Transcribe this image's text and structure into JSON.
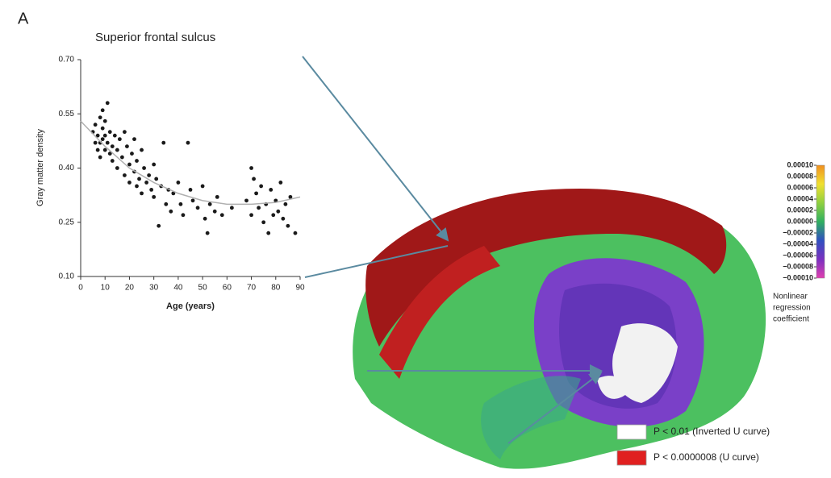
{
  "panel_label": "A",
  "chart_data": {
    "type": "scatter",
    "title": "Superior frontal sulcus",
    "xlabel": "Age (years)",
    "ylabel": "Gray matter density",
    "xlim": [
      0,
      90
    ],
    "ylim": [
      0.1,
      0.7
    ],
    "xticks": [
      0,
      10,
      20,
      30,
      40,
      50,
      60,
      70,
      80,
      90
    ],
    "yticks": [
      {
        "value": 0.1,
        "label": "0.10"
      },
      0.25,
      {
        "value": 0.4,
        "label": "0.40"
      },
      0.55,
      {
        "value": 0.7,
        "label": "0.70"
      }
    ],
    "series": [
      {
        "type": "scatter",
        "color": "#1a1a1a",
        "x": [
          5,
          6,
          6,
          7,
          7,
          8,
          8,
          8,
          9,
          9,
          9,
          10,
          10,
          10,
          11,
          11,
          12,
          12,
          13,
          13,
          14,
          15,
          15,
          16,
          17,
          18,
          18,
          19,
          20,
          20,
          21,
          22,
          22,
          23,
          23,
          24,
          25,
          25,
          26,
          27,
          28,
          29,
          30,
          30,
          31,
          32,
          33,
          34,
          35,
          36,
          37,
          38,
          40,
          41,
          42,
          44,
          45,
          46,
          48,
          50,
          51,
          52,
          53,
          55,
          56,
          58,
          62,
          68,
          70,
          70,
          71,
          72,
          73,
          74,
          75,
          76,
          77,
          78,
          79,
          80,
          81,
          82,
          83,
          84,
          85,
          86,
          88
        ],
        "values": [
          0.5,
          0.47,
          0.52,
          0.45,
          0.49,
          0.54,
          0.47,
          0.43,
          0.51,
          0.48,
          0.56,
          0.45,
          0.53,
          0.49,
          0.47,
          0.58,
          0.5,
          0.44,
          0.46,
          0.42,
          0.49,
          0.45,
          0.4,
          0.48,
          0.43,
          0.5,
          0.38,
          0.46,
          0.41,
          0.36,
          0.44,
          0.39,
          0.48,
          0.35,
          0.42,
          0.37,
          0.45,
          0.33,
          0.4,
          0.36,
          0.38,
          0.34,
          0.41,
          0.32,
          0.37,
          0.24,
          0.35,
          0.47,
          0.3,
          0.34,
          0.28,
          0.33,
          0.36,
          0.3,
          0.27,
          0.47,
          0.34,
          0.31,
          0.29,
          0.35,
          0.26,
          0.22,
          0.3,
          0.28,
          0.32,
          0.27,
          0.29,
          0.31,
          0.4,
          0.27,
          0.37,
          0.33,
          0.29,
          0.35,
          0.25,
          0.3,
          0.22,
          0.34,
          0.27,
          0.31,
          0.28,
          0.36,
          0.26,
          0.3,
          0.24,
          0.32,
          0.22
        ]
      },
      {
        "type": "line",
        "color": "#b0b0b0",
        "x": [
          0,
          10,
          20,
          30,
          40,
          50,
          60,
          70,
          80,
          90
        ],
        "values": [
          0.53,
          0.46,
          0.4,
          0.36,
          0.33,
          0.31,
          0.3,
          0.3,
          0.305,
          0.32
        ]
      }
    ]
  },
  "colorbar": {
    "lim": [
      -0.0001,
      0.0001
    ],
    "colors": [
      "#e040b0",
      "#7a30c0",
      "#3050c0",
      "#30b060",
      "#90d040",
      "#f0e030",
      "#f09020"
    ],
    "ticks": [
      {
        "value": 0.0001,
        "label": "0.00010"
      },
      {
        "value": 8e-05,
        "label": "0.00008"
      },
      {
        "value": 6e-05,
        "label": "0.00006"
      },
      {
        "value": 4e-05,
        "label": "0.00004"
      },
      {
        "value": 2e-05,
        "label": "0.00002"
      },
      {
        "value": 0,
        "label": "0.00000"
      },
      {
        "value": -2e-05,
        "label": "−0.00002"
      },
      {
        "value": -4e-05,
        "label": "−0.00004"
      },
      {
        "value": -6e-05,
        "label": "−0.00006"
      },
      {
        "value": -8e-05,
        "label": "−0.00008"
      },
      {
        "value": -0.0001,
        "label": "−0.00010"
      }
    ],
    "title_lines": [
      "Nonlinear",
      "regression",
      "coefficient"
    ]
  },
  "legend": [
    {
      "label": "P < 0.01 (Inverted U curve)",
      "color": "#ffffff"
    },
    {
      "label": "P < 0.0000008 (U curve)",
      "color": "#e02020"
    }
  ]
}
